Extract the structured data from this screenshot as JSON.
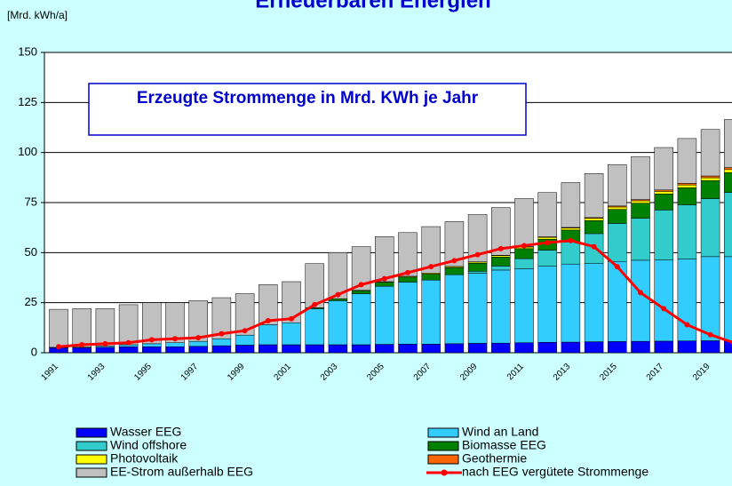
{
  "chart_data": {
    "type": "bar",
    "stacked": true,
    "title": "Erneuerbaren Energien",
    "y_axis_label": "[Mrd. kWh/a]",
    "annotation": "Erzeugte Strommenge in Mrd. KWh je Jahr",
    "categories": [
      "1991",
      null,
      "1993",
      null,
      "1995",
      null,
      "1997",
      null,
      "1999",
      null,
      "2001",
      null,
      "2003",
      null,
      "2005",
      null,
      "2007",
      null,
      "2009",
      null,
      "2011",
      null,
      "2013",
      null,
      "2015",
      null,
      "2017",
      null,
      "2019",
      null
    ],
    "series": [
      {
        "name": "Wasser EEG",
        "color": "#0000ff",
        "values": [
          2.5,
          2.5,
          2.7,
          3,
          3,
          3,
          3.2,
          3.5,
          3.8,
          4,
          4,
          4,
          4,
          4,
          4.2,
          4.3,
          4.3,
          4.5,
          4.7,
          4.8,
          5,
          5.2,
          5.3,
          5.5,
          5.6,
          5.7,
          5.8,
          5.9,
          6,
          6
        ]
      },
      {
        "name": "Wind an Land",
        "color": "#33ccff",
        "values": [
          0.2,
          0.3,
          0.6,
          1,
          1.5,
          2,
          2.5,
          3.5,
          5,
          10,
          11,
          18,
          22,
          25.5,
          29,
          31,
          32,
          34.5,
          35,
          36.5,
          37,
          38,
          39,
          39,
          40,
          40.5,
          40.5,
          41,
          42,
          42
        ]
      },
      {
        "name": "Wind offshore",
        "color": "#33cccc",
        "values": [
          0,
          0,
          0,
          0,
          0,
          0,
          0,
          0,
          0,
          0,
          0,
          0,
          0,
          0,
          0,
          0,
          0,
          0,
          1,
          2,
          5,
          8,
          11,
          15,
          19,
          21,
          25,
          27,
          29,
          32
        ]
      },
      {
        "name": "Biomasse EEG",
        "color": "#008000",
        "values": [
          0,
          0,
          0,
          0,
          0,
          0,
          0,
          0,
          0,
          0,
          0,
          0.5,
          1,
          1.5,
          2,
          2.5,
          3,
          3.5,
          4,
          4.5,
          5,
          5.5,
          6,
          6.5,
          7,
          7.5,
          8,
          8.5,
          9,
          10
        ]
      },
      {
        "name": "Photovoltaik",
        "color": "#ffff00",
        "values": [
          0,
          0,
          0,
          0,
          0,
          0,
          0,
          0,
          0,
          0,
          0,
          0,
          0,
          0.2,
          0.3,
          0.4,
          0.5,
          0.5,
          0.6,
          0.7,
          0.8,
          0.9,
          1,
          1.1,
          1.2,
          1.2,
          1.3,
          1.4,
          1.4,
          1.5
        ]
      },
      {
        "name": "Geothermie",
        "color": "#ff6600",
        "values": [
          0,
          0,
          0,
          0,
          0,
          0,
          0,
          0,
          0,
          0,
          0,
          0,
          0,
          0,
          0,
          0,
          0,
          0.1,
          0.1,
          0.2,
          0.2,
          0.3,
          0.3,
          0.4,
          0.5,
          0.6,
          0.7,
          0.8,
          0.9,
          1
        ]
      },
      {
        "name": "EE-Strom außerhalb EEG",
        "color": "#c0c0c0",
        "values": [
          19,
          19.2,
          18.7,
          20,
          20.5,
          20,
          20.3,
          20.5,
          20.7,
          20,
          20.5,
          22,
          23,
          21.8,
          22.5,
          21.8,
          23.2,
          22.4,
          23.6,
          23.8,
          24,
          22.1,
          22.4,
          22,
          20.7,
          21.5,
          21.2,
          22.4,
          23.2,
          24
        ]
      },
      {
        "name": "nach EEG vergütete Strommenge",
        "color": "#ff0000",
        "type": "line",
        "values": [
          3,
          4,
          4.5,
          5,
          6.5,
          7,
          7.5,
          9.5,
          11,
          16,
          17,
          24,
          29,
          34,
          37,
          40,
          43,
          46,
          49,
          52,
          53.5,
          55,
          56,
          53,
          43,
          30,
          22,
          14,
          9,
          5
        ]
      }
    ],
    "ylim": [
      0,
      150
    ],
    "yticks": [
      0,
      25,
      50,
      75,
      100,
      125,
      150
    ],
    "grid": true
  }
}
